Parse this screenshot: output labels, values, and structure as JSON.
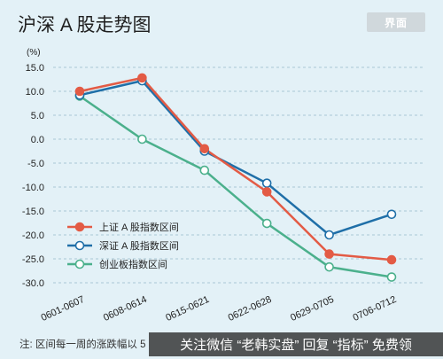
{
  "header": {
    "title": "沪深 A 股走势图",
    "logo_text": "界面"
  },
  "footer": {
    "note": "注: 区间每一周的涨跌幅以 5",
    "promo": "关注微信 “老韩实盘” 回复 “指标” 免费领"
  },
  "colors": {
    "shanghai": "#e35b45",
    "shenzhen": "#1f6fa8",
    "chinext": "#4bb08c",
    "grid": "#a9c6d4"
  },
  "chart_data": {
    "type": "line",
    "unit_label": "(%)",
    "categories": [
      "0601-0607",
      "0608-0614",
      "0615-0621",
      "0622-0628",
      "0629-0705",
      "0706-0712"
    ],
    "ylim": [
      -30,
      15
    ],
    "yticks": [
      "15.0",
      "10.0",
      "5.0",
      "0.0",
      "-5.0",
      "-10.0",
      "-15.0",
      "-20.0",
      "-25.0",
      "-30.0"
    ],
    "ytick_values": [
      15,
      10,
      5,
      0,
      -5,
      -10,
      -15,
      -20,
      -25,
      -30
    ],
    "legend_position": "bottom-left",
    "series": [
      {
        "name": "上证 A 股指数区间",
        "color": "#e35b45",
        "marker": "filled",
        "values": [
          10.0,
          12.8,
          -2.0,
          -11.0,
          -24.0,
          -25.2
        ]
      },
      {
        "name": "深证 A 股指数区间",
        "color": "#1f6fa8",
        "marker": "hollow",
        "values": [
          9.2,
          12.2,
          -2.5,
          -9.2,
          -20.0,
          -15.7
        ]
      },
      {
        "name": "创业板指数区间",
        "color": "#4bb08c",
        "marker": "hollow",
        "values": [
          9.0,
          0.0,
          -6.5,
          -17.6,
          -26.7,
          -28.8
        ]
      }
    ]
  }
}
